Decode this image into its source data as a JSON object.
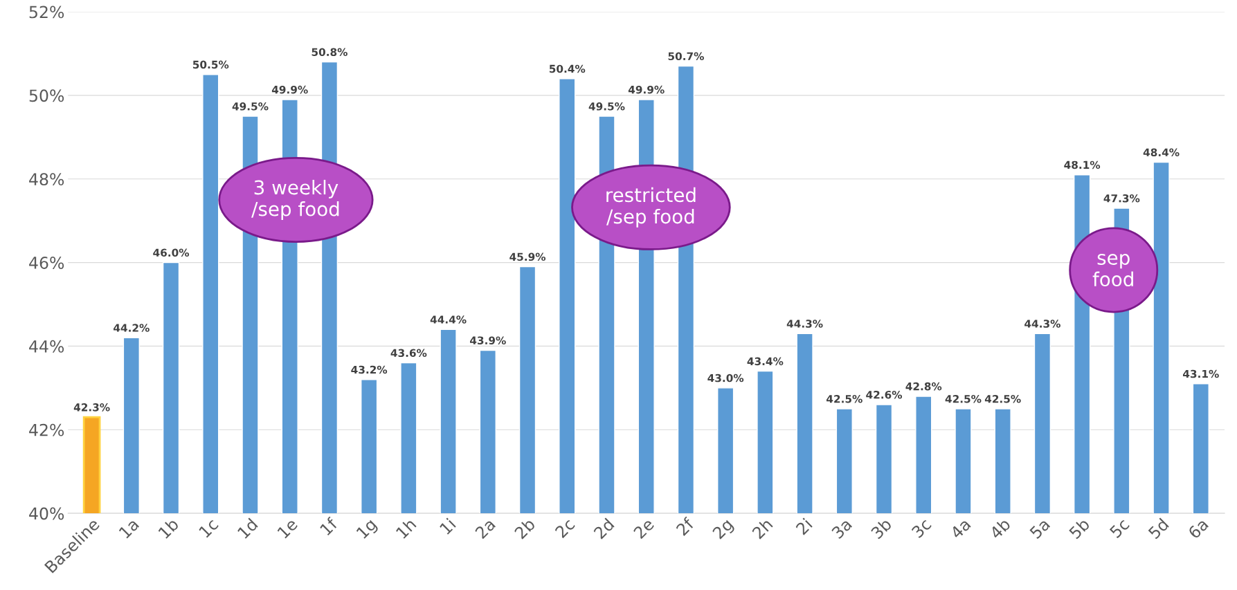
{
  "chart_data": {
    "type": "bar",
    "categories": [
      "Baseline",
      "1a",
      "1b",
      "1c",
      "1d",
      "1e",
      "1f",
      "1g",
      "1h",
      "1i",
      "2a",
      "2b",
      "2c",
      "2d",
      "2e",
      "2f",
      "2g",
      "2h",
      "2i",
      "3a",
      "3b",
      "3c",
      "4a",
      "4b",
      "5a",
      "5b",
      "5c",
      "5d",
      "6a"
    ],
    "values": [
      42.3,
      44.2,
      46.0,
      50.5,
      49.5,
      49.9,
      50.8,
      43.2,
      43.6,
      44.4,
      43.9,
      45.9,
      50.4,
      49.5,
      49.9,
      50.7,
      43.0,
      43.4,
      44.3,
      42.5,
      42.6,
      42.8,
      42.5,
      42.5,
      44.3,
      48.1,
      47.3,
      48.4,
      43.1
    ],
    "value_labels": [
      "42.3%",
      "44.2%",
      "46.0%",
      "50.5%",
      "49.5%",
      "49.9%",
      "50.8%",
      "43.2%",
      "43.6%",
      "44.4%",
      "43.9%",
      "45.9%",
      "50.4%",
      "49.5%",
      "49.9%",
      "50.7%",
      "43.0%",
      "43.4%",
      "44.3%",
      "42.5%",
      "42.6%",
      "42.8%",
      "42.5%",
      "42.5%",
      "44.3%",
      "48.1%",
      "47.3%",
      "48.4%",
      "43.1%"
    ],
    "colors": [
      "#f5a623",
      "#5b9bd5",
      "#5b9bd5",
      "#5b9bd5",
      "#5b9bd5",
      "#5b9bd5",
      "#5b9bd5",
      "#5b9bd5",
      "#5b9bd5",
      "#5b9bd5",
      "#5b9bd5",
      "#5b9bd5",
      "#5b9bd5",
      "#5b9bd5",
      "#5b9bd5",
      "#5b9bd5",
      "#5b9bd5",
      "#5b9bd5",
      "#5b9bd5",
      "#5b9bd5",
      "#5b9bd5",
      "#5b9bd5",
      "#5b9bd5",
      "#5b9bd5",
      "#5b9bd5",
      "#5b9bd5",
      "#5b9bd5",
      "#5b9bd5",
      "#5b9bd5"
    ],
    "ylim": [
      40,
      52
    ],
    "yticks": [
      {
        "value": 40,
        "label": "40%"
      },
      {
        "value": 42,
        "label": "42%"
      },
      {
        "value": 44,
        "label": "44%"
      },
      {
        "value": 46,
        "label": "46%"
      },
      {
        "value": 48,
        "label": "48%"
      },
      {
        "value": 50,
        "label": "50%"
      },
      {
        "value": 52,
        "label": "52%"
      }
    ],
    "grid": "y",
    "annotations": [
      "3 weekly\n/sep food",
      "restricted\n/sep food",
      "sep\nfood"
    ]
  }
}
